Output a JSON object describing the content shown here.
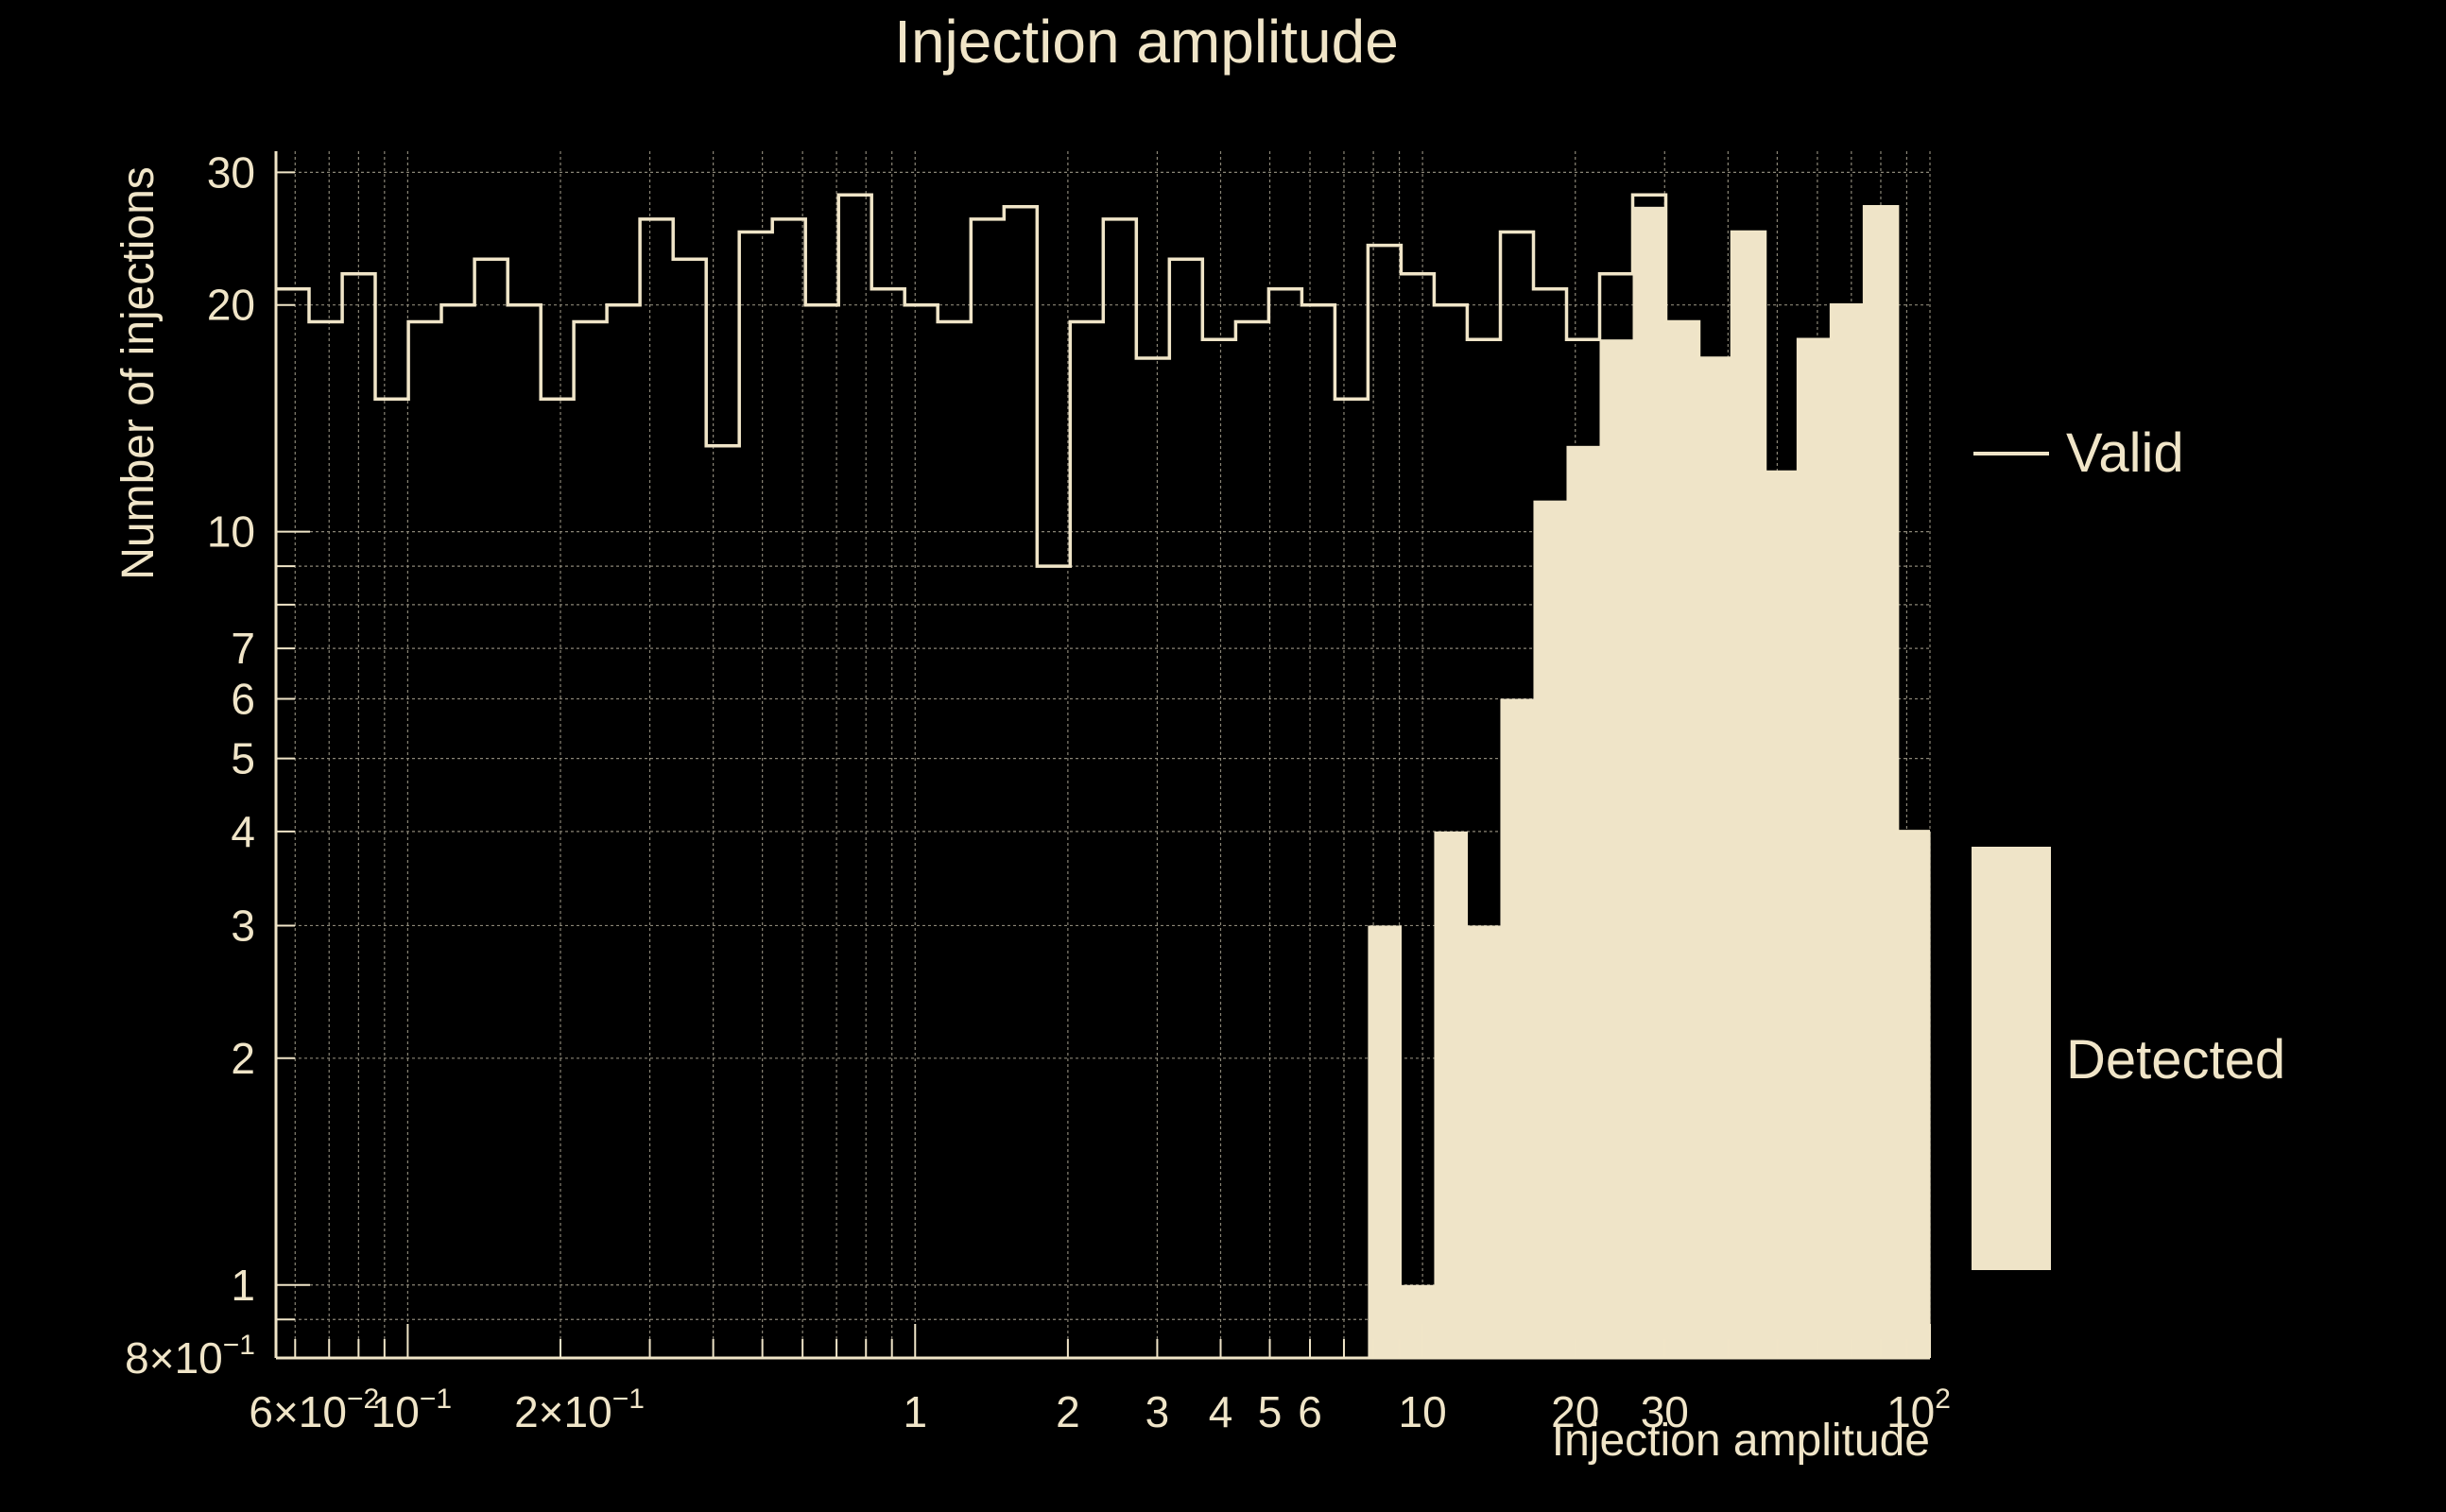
{
  "chart_data": {
    "type": "bar",
    "title": "Injection amplitude",
    "xlabel": "Injection amplitude",
    "ylabel": "Number of injections",
    "x_scale": "log",
    "y_scale": "log",
    "xlim": [
      0.055,
      100
    ],
    "ylim": [
      0.8,
      32
    ],
    "x_ticks": [
      {
        "value": 0.06,
        "label": "6×10",
        "sup": "−2"
      },
      {
        "value": 0.1,
        "label": "10",
        "sup": "−1"
      },
      {
        "value": 0.2,
        "label": "2×10",
        "sup": "−1"
      },
      {
        "value": 1,
        "label": "1",
        "sup": ""
      },
      {
        "value": 2,
        "label": "2",
        "sup": ""
      },
      {
        "value": 3,
        "label": "3",
        "sup": ""
      },
      {
        "value": 4,
        "label": "4",
        "sup": ""
      },
      {
        "value": 5,
        "label": "5",
        "sup": ""
      },
      {
        "value": 6,
        "label": "6",
        "sup": ""
      },
      {
        "value": 10,
        "label": "10",
        "sup": ""
      },
      {
        "value": 20,
        "label": "20",
        "sup": ""
      },
      {
        "value": 30,
        "label": "30",
        "sup": ""
      },
      {
        "value": 100,
        "label": "10",
        "sup": "2"
      }
    ],
    "y_ticks": [
      {
        "value": 0.8,
        "label": "8×10",
        "sup": "−1"
      },
      {
        "value": 1,
        "label": "1",
        "sup": ""
      },
      {
        "value": 2,
        "label": "2",
        "sup": ""
      },
      {
        "value": 3,
        "label": "3",
        "sup": ""
      },
      {
        "value": 4,
        "label": "4",
        "sup": ""
      },
      {
        "value": 5,
        "label": "5",
        "sup": ""
      },
      {
        "value": 6,
        "label": "6",
        "sup": ""
      },
      {
        "value": 7,
        "label": "7",
        "sup": ""
      },
      {
        "value": 10,
        "label": "10",
        "sup": ""
      },
      {
        "value": 20,
        "label": "20",
        "sup": ""
      },
      {
        "value": 30,
        "label": "30",
        "sup": ""
      }
    ],
    "grid": true,
    "legend_position": "right",
    "bin_edges": [
      0.055,
      0.0639,
      0.0743,
      0.0863,
      0.1003,
      0.1165,
      0.1354,
      0.1574,
      0.1829,
      0.2125,
      0.2469,
      0.2869,
      0.3334,
      0.3874,
      0.4502,
      0.5231,
      0.6079,
      0.7064,
      0.8208,
      0.9538,
      1.1083,
      1.2879,
      1.4966,
      1.7391,
      2.0209,
      2.3483,
      2.7288,
      3.1709,
      3.6847,
      4.2817,
      4.9754,
      5.7816,
      6.7183,
      7.8069,
      9.0718,
      10.5417,
      12.2497,
      14.2344,
      16.5407,
      19.2207,
      22.3349,
      25.9537,
      30.1587,
      35.0451,
      40.7232,
      47.3212,
      54.9883,
      63.8975,
      74.2502,
      86.2802,
      100.0
    ],
    "series": [
      {
        "name": "Valid",
        "style": "step",
        "color": "#f0e5c8",
        "values": [
          21,
          19,
          22,
          15,
          19,
          20,
          23,
          20,
          15,
          19,
          20,
          26,
          23,
          13,
          25,
          26,
          20,
          28,
          21,
          20,
          19,
          26,
          27,
          9,
          19,
          26,
          17,
          23,
          18,
          19,
          21,
          20,
          15,
          24,
          22,
          20,
          18,
          25,
          21,
          18,
          22,
          28,
          19,
          17,
          25,
          12,
          18,
          20,
          27,
          4
        ]
      },
      {
        "name": "Detected",
        "style": "filled",
        "color": "#efe4c8",
        "values": [
          0,
          0,
          0,
          0,
          0,
          0,
          0,
          0,
          0,
          0,
          0,
          0,
          0,
          0,
          0,
          0,
          0,
          0,
          0,
          0,
          0,
          0,
          0,
          0,
          0,
          0,
          0,
          0,
          0,
          0,
          0,
          0,
          0,
          3,
          1,
          4,
          3,
          6,
          11,
          13,
          18,
          27,
          19,
          17,
          25,
          12,
          18,
          20,
          27,
          4
        ]
      }
    ]
  }
}
